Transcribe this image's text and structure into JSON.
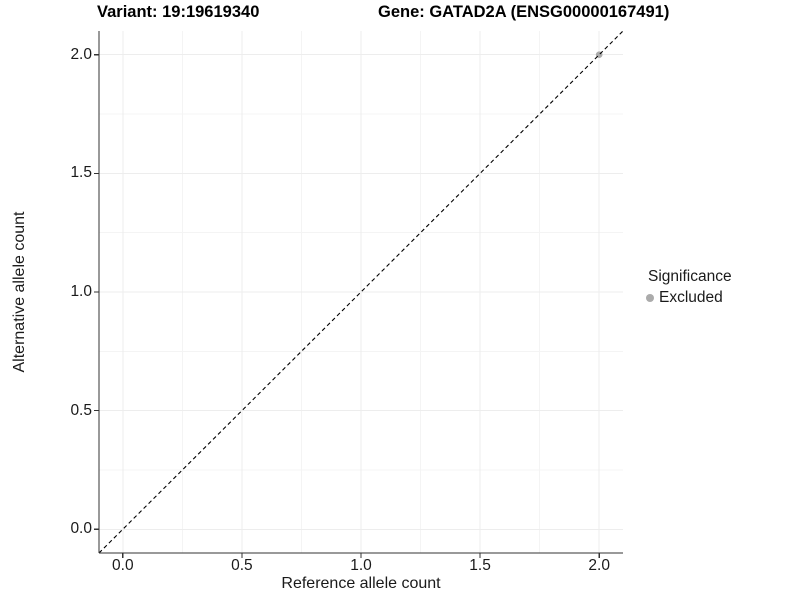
{
  "titles": {
    "variant": "Variant: 19:19619340",
    "gene": "Gene: GATAD2A (ENSG00000167491)"
  },
  "chart_data": {
    "type": "scatter",
    "title_left": "Variant: 19:19619340",
    "title_right": "Gene: GATAD2A (ENSG00000167491)",
    "xlabel": "Reference allele count",
    "ylabel": "Alternative allele count",
    "xlim": [
      -0.1,
      2.1
    ],
    "ylim": [
      -0.1,
      2.1
    ],
    "x_ticks": [
      0.0,
      0.5,
      1.0,
      1.5,
      2.0
    ],
    "y_ticks": [
      0.0,
      0.5,
      1.0,
      1.5,
      2.0
    ],
    "tick_decimals": 1,
    "grid": {
      "major_color": "#ededed",
      "minor_color": "#f4f4f4"
    },
    "reference_line": {
      "type": "identity",
      "style": "dashed",
      "color": "#000000",
      "from": [
        -0.1,
        -0.1
      ],
      "to": [
        2.1,
        2.1
      ]
    },
    "series": [
      {
        "name": "Excluded",
        "color": "#ababab",
        "points": [
          {
            "x": 2.0,
            "y": 2.0
          }
        ]
      }
    ],
    "legend_position": "right"
  },
  "legend": {
    "title": "Significance",
    "items": [
      {
        "label": "Excluded",
        "color": "#ababab"
      }
    ]
  },
  "colors": {
    "background": "#ffffff",
    "axis_line": "#333333",
    "tick_mark": "#333333",
    "text": "#1a1a1a"
  }
}
